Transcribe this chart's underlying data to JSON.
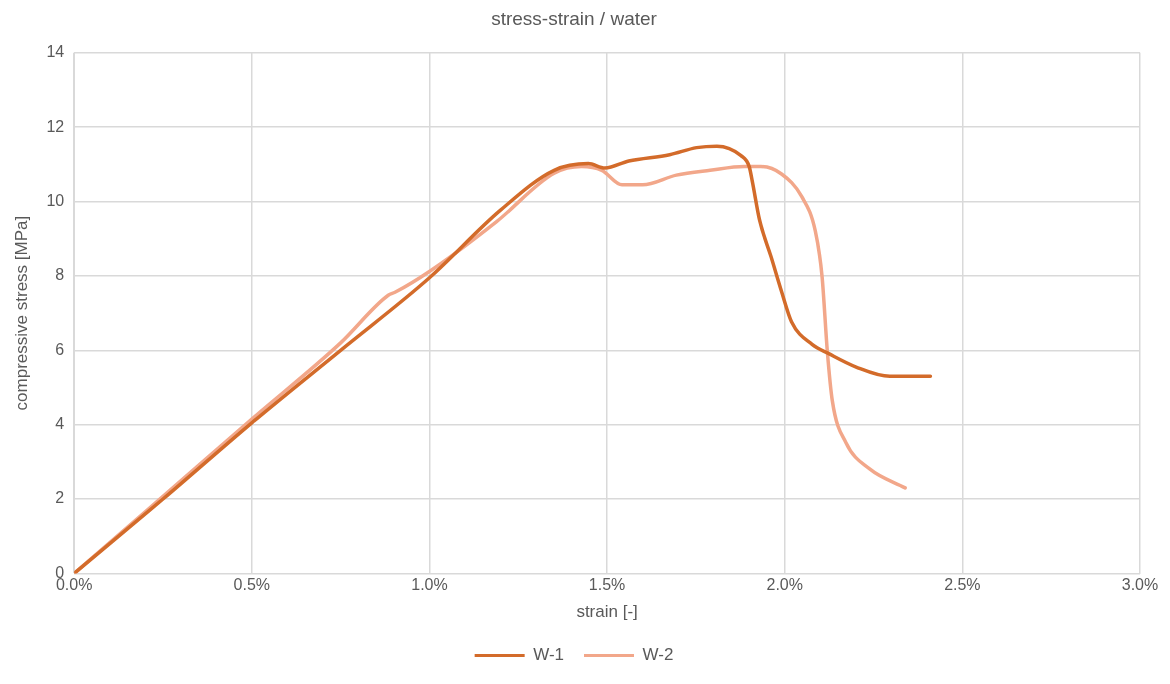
{
  "chart_data": {
    "type": "line",
    "title": "stress-strain / water",
    "xlabel": "strain [-]",
    "ylabel": "compressive stress [MPa]",
    "xlim": [
      0,
      0.03
    ],
    "xticks": [
      {
        "value": 0,
        "label": "0.0%"
      },
      {
        "value": 0.005,
        "label": "0.5%"
      },
      {
        "value": 0.01,
        "label": "1.0%"
      },
      {
        "value": 0.015,
        "label": "1.5%"
      },
      {
        "value": 0.02,
        "label": "2.0%"
      },
      {
        "value": 0.025,
        "label": "2.5%"
      },
      {
        "value": 0.03,
        "label": "3.0%"
      }
    ],
    "ylim": [
      0,
      14
    ],
    "yticks": [
      0,
      2,
      4,
      6,
      8,
      10,
      12,
      14
    ],
    "grid": true,
    "legend": "bottom",
    "marker": "none",
    "line_style": "solid",
    "series": [
      {
        "name": "W-1",
        "color": "#d36b2a",
        "x": [
          0,
          0.0025,
          0.005,
          0.0075,
          0.01,
          0.012,
          0.01351,
          0.01447,
          0.01494,
          0.01561,
          0.01676,
          0.01752,
          0.01809,
          0.01876,
          0.019,
          0.01909,
          0.01929,
          0.01962,
          0.01991,
          0.02019,
          0.02077,
          0.02124,
          0.02201,
          0.02296,
          0.0241
        ],
        "values": [
          0,
          2.0,
          4.05,
          6.0,
          7.95,
          9.77,
          10.84,
          11.02,
          10.9,
          11.09,
          11.26,
          11.45,
          11.49,
          11.24,
          10.94,
          10.53,
          9.51,
          8.5,
          7.58,
          6.77,
          6.16,
          5.91,
          5.55,
          5.3,
          5.3
        ]
      },
      {
        "name": "W-2",
        "color": "#f2a78a",
        "x": [
          0,
          0.0025,
          0.005,
          0.0075,
          0.00884,
          0.00903,
          0.01003,
          0.01189,
          0.01351,
          0.01428,
          0.01485,
          0.01542,
          0.016,
          0.01695,
          0.0179,
          0.01886,
          0.01933,
          0.01991,
          0.02048,
          0.02086,
          0.02105,
          0.0212,
          0.02134,
          0.02172,
          0.02239,
          0.02339
        ],
        "values": [
          0,
          2.07,
          4.15,
          6.2,
          7.48,
          7.56,
          8.14,
          9.46,
          10.76,
          10.94,
          10.84,
          10.45,
          10.45,
          10.71,
          10.84,
          10.94,
          10.94,
          10.74,
          10.13,
          9.21,
          7.99,
          5.96,
          4.64,
          3.52,
          2.81,
          2.3
        ]
      }
    ]
  }
}
